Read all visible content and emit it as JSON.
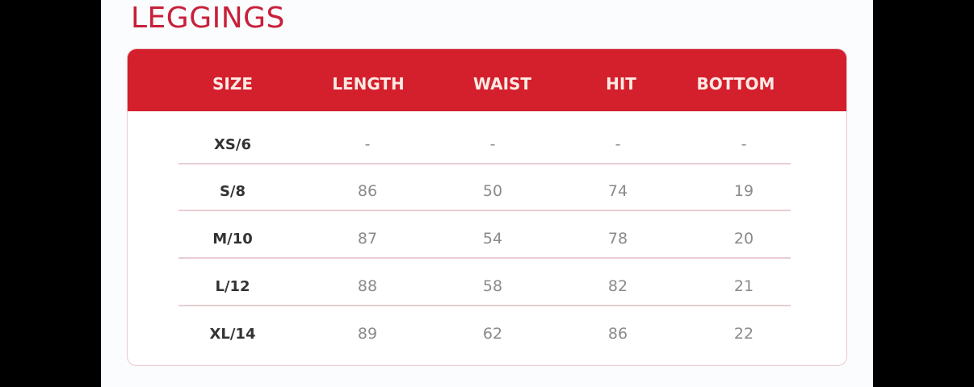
{
  "title": "LEGGINGS",
  "colors": {
    "accent": "#d41f2d",
    "title": "#c8203a"
  },
  "table": {
    "headers": [
      "SIZE",
      "LENGTH",
      "WAIST",
      "HIT",
      "BOTTOM"
    ],
    "rows": [
      [
        "XS/6",
        "-",
        "-",
        "-",
        "-"
      ],
      [
        "S/8",
        "86",
        "50",
        "74",
        "19"
      ],
      [
        "M/10",
        "87",
        "54",
        "78",
        "20"
      ],
      [
        "L/12",
        "88",
        "58",
        "82",
        "21"
      ],
      [
        "XL/14",
        "89",
        "62",
        "86",
        "22"
      ]
    ]
  }
}
